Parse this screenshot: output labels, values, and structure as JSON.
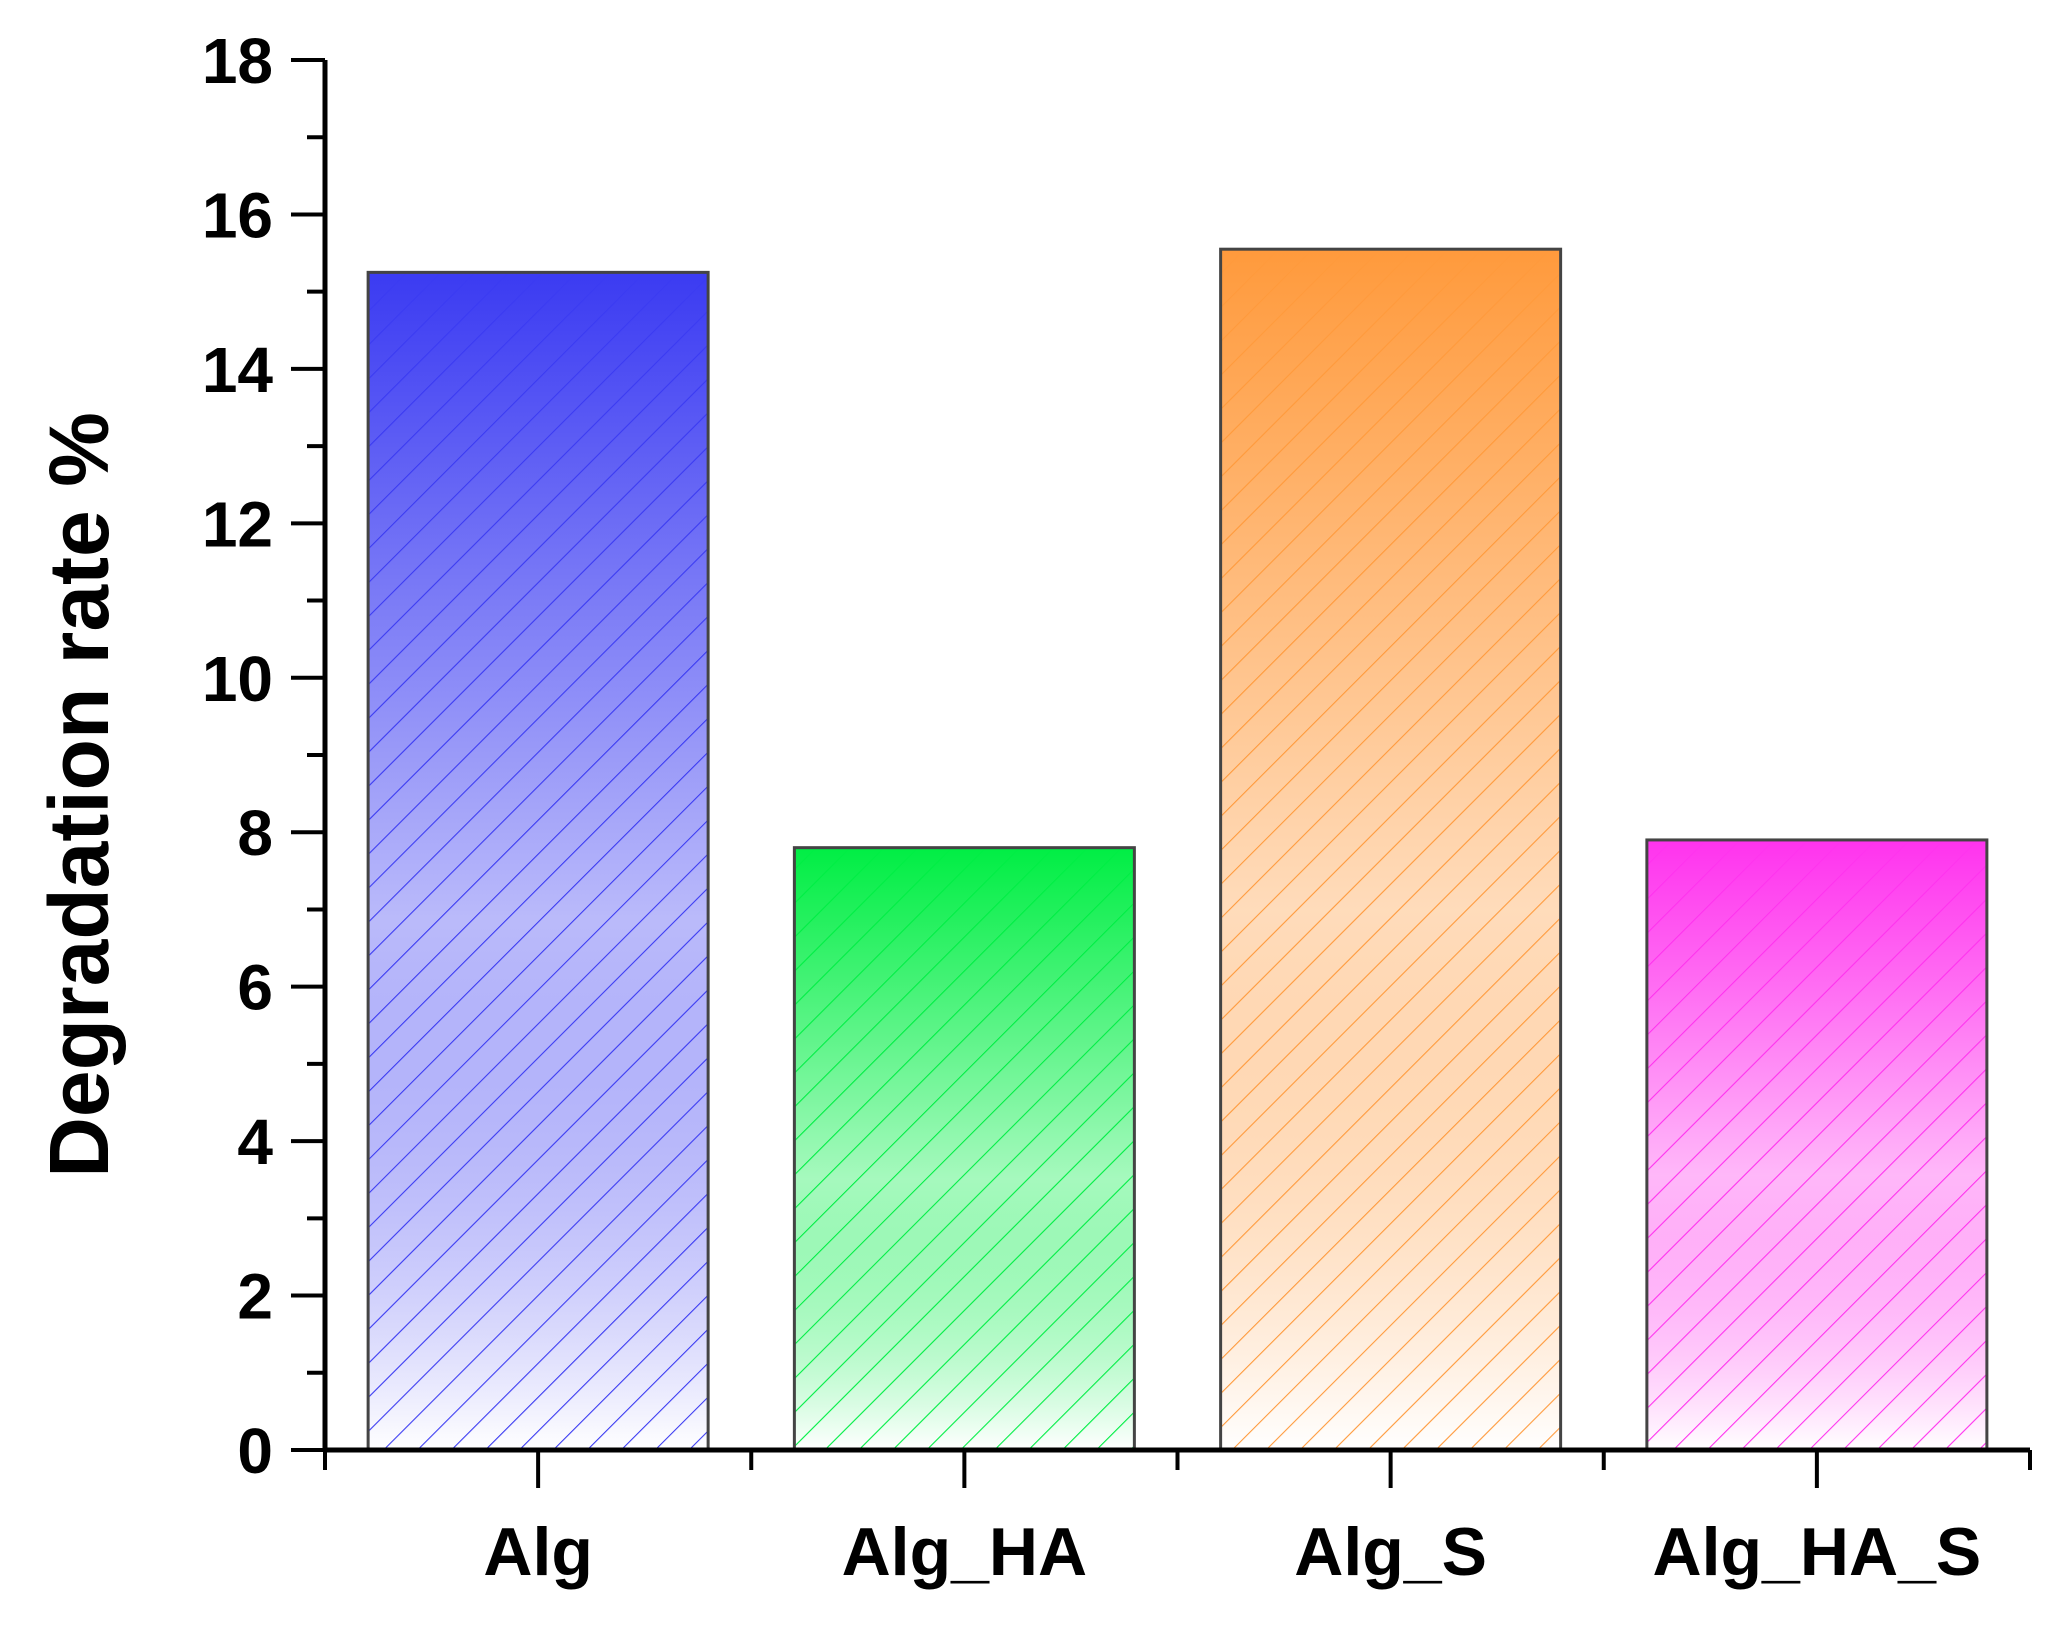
{
  "chart_data": {
    "type": "bar",
    "title": "",
    "xlabel": "",
    "ylabel": "Degradation rate %",
    "categories": [
      "Alg",
      "Alg_HA",
      "Alg_S",
      "Alg_HA_S"
    ],
    "values": [
      15.25,
      7.8,
      15.55,
      7.9
    ],
    "ylim": [
      0,
      18
    ],
    "yticks": [
      0,
      2,
      4,
      6,
      8,
      10,
      12,
      14,
      16,
      18
    ],
    "grid": false,
    "legend": "none",
    "bar_colors": [
      "#3b3bf2",
      "#00ee44",
      "#ff9a3c",
      "#ff33ee"
    ],
    "fill_style": "vertical gradient fading toward white with diagonal hatch lines"
  }
}
